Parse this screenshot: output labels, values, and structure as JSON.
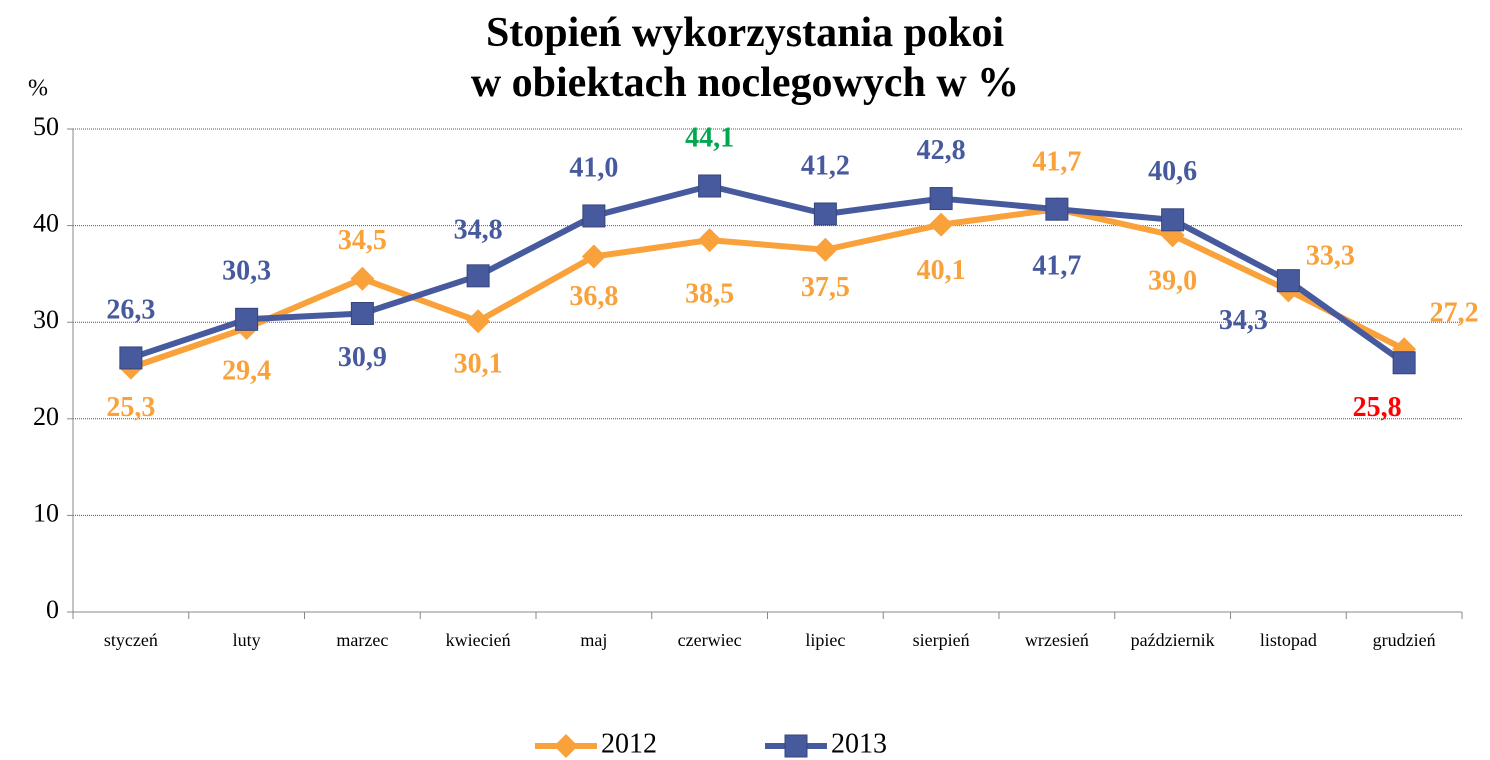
{
  "chart_data": {
    "type": "line",
    "title": "Stopień wykorzystania pokoi\nw obiektach noclegowych w %",
    "y_label": "%",
    "categories": [
      "styczeń",
      "luty",
      "marzec",
      "kwiecień",
      "maj",
      "czerwiec",
      "lipiec",
      "sierpień",
      "wrzesień",
      "październik",
      "listopad",
      "grudzień"
    ],
    "series": [
      {
        "name": "2012",
        "color": "#f9a13a",
        "marker": "diamond",
        "values": [
          25.3,
          29.4,
          34.5,
          30.1,
          36.8,
          38.5,
          37.5,
          40.1,
          41.7,
          39.0,
          33.3,
          27.2
        ],
        "value_labels": [
          "25,3",
          "29,4",
          "34,5",
          "30,1",
          "36,8",
          "38,5",
          "37,5",
          "40,1",
          "41,7",
          "39,0",
          "33,3",
          "27,2"
        ],
        "value_label_colors": [
          "#f9a13a",
          "#f9a13a",
          "#f9a13a",
          "#f9a13a",
          "#f9a13a",
          "#f9a13a",
          "#f9a13a",
          "#f9a13a",
          "#f9a13a",
          "#f9a13a",
          "#f9a13a",
          "#f9a13a"
        ]
      },
      {
        "name": "2013",
        "color": "#485a9e",
        "marker": "square",
        "values": [
          26.3,
          30.3,
          30.9,
          34.8,
          41.0,
          44.1,
          41.2,
          42.8,
          41.7,
          40.6,
          34.3,
          25.8
        ],
        "value_labels": [
          "26,3",
          "30,3",
          "30,9",
          "34,8",
          "41,0",
          "44,1",
          "41,2",
          "42,8",
          "41,7",
          "40,6",
          "34,3",
          "25,8"
        ],
        "value_label_colors": [
          "#485a9e",
          "#485a9e",
          "#485a9e",
          "#485a9e",
          "#485a9e",
          "#00a650",
          "#485a9e",
          "#485a9e",
          "#485a9e",
          "#485a9e",
          "#485a9e",
          "#ff0000"
        ]
      }
    ],
    "ylim": [
      0,
      50
    ],
    "yticks": [
      0,
      10,
      20,
      30,
      40,
      50
    ],
    "grid": true,
    "legend": "bottom"
  }
}
